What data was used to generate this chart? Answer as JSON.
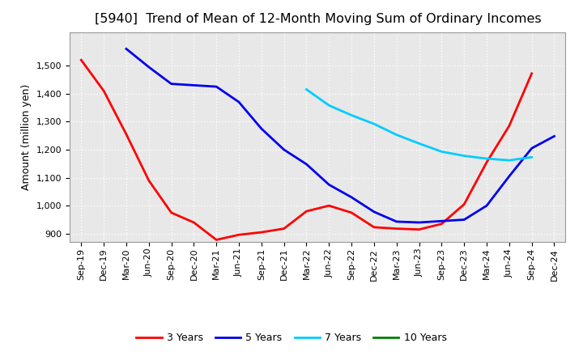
{
  "title": "[5940]  Trend of Mean of 12-Month Moving Sum of Ordinary Incomes",
  "ylabel": "Amount (million yen)",
  "ylim": [
    870,
    1620
  ],
  "yticks": [
    900,
    1000,
    1100,
    1200,
    1300,
    1400,
    1500
  ],
  "background_color": "#ffffff",
  "plot_bg_color": "#e8e8e8",
  "grid_color": "#ffffff",
  "x_labels": [
    "Sep-19",
    "Dec-19",
    "Mar-20",
    "Jun-20",
    "Sep-20",
    "Dec-20",
    "Mar-21",
    "Jun-21",
    "Sep-21",
    "Dec-21",
    "Mar-22",
    "Jun-22",
    "Sep-22",
    "Dec-22",
    "Mar-23",
    "Jun-23",
    "Sep-23",
    "Dec-23",
    "Mar-24",
    "Jun-24",
    "Sep-24",
    "Dec-24"
  ],
  "series": {
    "3 Years": {
      "color": "#ff0000",
      "data": [
        [
          0,
          1520
        ],
        [
          1,
          1410
        ],
        [
          2,
          1255
        ],
        [
          3,
          1090
        ],
        [
          4,
          975
        ],
        [
          5,
          940
        ],
        [
          6,
          878
        ],
        [
          7,
          896
        ],
        [
          8,
          905
        ],
        [
          9,
          918
        ],
        [
          10,
          980
        ],
        [
          11,
          1000
        ],
        [
          12,
          975
        ],
        [
          13,
          923
        ],
        [
          14,
          918
        ],
        [
          15,
          915
        ],
        [
          16,
          935
        ],
        [
          17,
          1005
        ],
        [
          18,
          1155
        ],
        [
          19,
          1285
        ],
        [
          20,
          1472
        ],
        [
          21,
          null
        ]
      ]
    },
    "5 Years": {
      "color": "#0000ee",
      "data": [
        [
          0,
          null
        ],
        [
          1,
          null
        ],
        [
          2,
          1560
        ],
        [
          3,
          1495
        ],
        [
          4,
          1435
        ],
        [
          5,
          1430
        ],
        [
          6,
          1425
        ],
        [
          7,
          1370
        ],
        [
          8,
          1275
        ],
        [
          9,
          1200
        ],
        [
          10,
          1148
        ],
        [
          11,
          1075
        ],
        [
          12,
          1030
        ],
        [
          13,
          978
        ],
        [
          14,
          943
        ],
        [
          15,
          940
        ],
        [
          16,
          945
        ],
        [
          17,
          950
        ],
        [
          18,
          1000
        ],
        [
          19,
          1105
        ],
        [
          20,
          1205
        ],
        [
          21,
          1248
        ]
      ]
    },
    "7 Years": {
      "color": "#00ccff",
      "data": [
        [
          0,
          null
        ],
        [
          1,
          null
        ],
        [
          2,
          null
        ],
        [
          3,
          null
        ],
        [
          4,
          null
        ],
        [
          5,
          null
        ],
        [
          6,
          null
        ],
        [
          7,
          null
        ],
        [
          8,
          null
        ],
        [
          9,
          null
        ],
        [
          10,
          1415
        ],
        [
          11,
          1358
        ],
        [
          12,
          1323
        ],
        [
          13,
          1292
        ],
        [
          14,
          1253
        ],
        [
          15,
          1222
        ],
        [
          16,
          1193
        ],
        [
          17,
          1178
        ],
        [
          18,
          1168
        ],
        [
          19,
          1162
        ],
        [
          20,
          1173
        ],
        [
          21,
          null
        ]
      ]
    },
    "10 Years": {
      "color": "#008000",
      "data": []
    }
  },
  "title_fontsize": 11.5,
  "label_fontsize": 9,
  "tick_fontsize": 8
}
